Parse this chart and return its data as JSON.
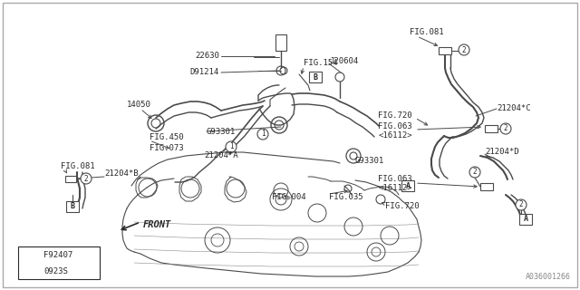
{
  "bg_color": "#ffffff",
  "border_color": "#bbbbbb",
  "line_color": "#4a4a4a",
  "text_color": "#2a2a2a",
  "part_number": "A036001266",
  "fig_width": 640,
  "fig_height": 320,
  "legend": [
    {
      "symbol": "1",
      "code": "F92407"
    },
    {
      "symbol": "2",
      "code": "0923S"
    }
  ]
}
